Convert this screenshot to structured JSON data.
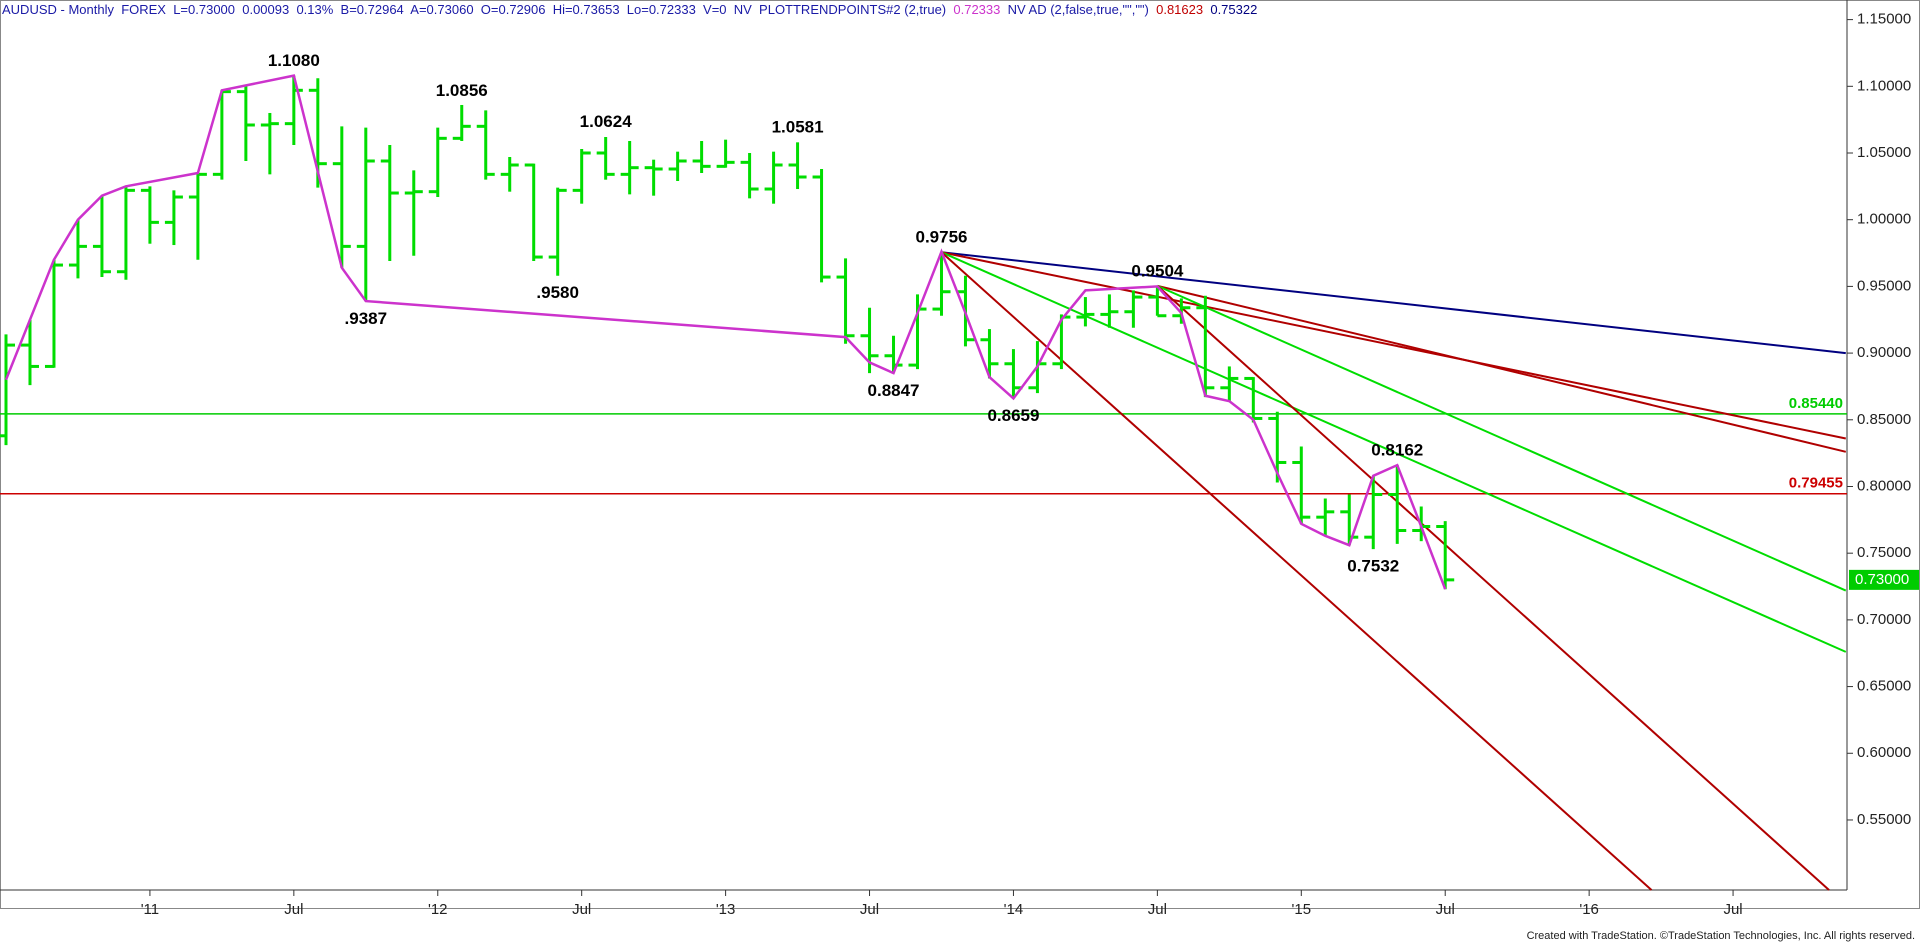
{
  "chart_data": {
    "type": "ohlc",
    "header": [
      {
        "text": "AUDUSD - Monthly  FOREX  L=0.73000  0.00093  0.13%  B=0.72964  A=0.73060  O=0.72906  Hi=0.73653  Lo=0.72333  V=0  NV  PLOTTRENDPOINTS#2 (2,true)  ",
        "color": "#1a1aa6"
      },
      {
        "text": "0.72333",
        "color": "#cc33cc"
      },
      {
        "text": "  NV AD (2,false,true,\"\",\"\")  ",
        "color": "#1a1aa6"
      },
      {
        "text": "0.81623",
        "color": "#c00000"
      },
      {
        "text": "  ",
        "color": "#1a1aa6"
      },
      {
        "text": "0.75322",
        "color": "#000080"
      }
    ],
    "footer": "Created with TradeStation. ©TradeStation Technologies, Inc. All rights reserved.",
    "categories": [
      null,
      null,
      null,
      null,
      null,
      null,
      "'11",
      null,
      null,
      null,
      null,
      null,
      "Jul",
      null,
      null,
      null,
      null,
      null,
      "'12",
      null,
      null,
      null,
      null,
      null,
      "Jul",
      null,
      null,
      null,
      null,
      null,
      "'13",
      null,
      null,
      null,
      null,
      null,
      "Jul",
      null,
      null,
      null,
      null,
      null,
      "'14",
      null,
      null,
      null,
      null,
      null,
      "Jul",
      null,
      null,
      null,
      null,
      null,
      "'15",
      null,
      null,
      null,
      null,
      null,
      "Jul",
      null,
      null,
      null,
      null,
      null,
      "'16",
      null,
      null,
      null,
      null,
      null,
      "Jul",
      null,
      null,
      null,
      null
    ],
    "color": "#00dd00",
    "open": [
      0.838,
      0.906,
      0.89,
      0.966,
      0.98,
      0.961,
      1.022,
      0.998,
      1.017,
      1.034,
      1.096,
      1.071,
      1.072,
      1.097,
      1.042,
      0.98,
      1.044,
      1.02,
      1.021,
      1.061,
      1.07,
      1.034,
      1.041,
      0.972,
      1.022,
      1.05,
      1.034,
      1.039,
      1.038,
      1.044,
      1.04,
      1.043,
      1.023,
      1.041,
      1.032,
      0.957,
      0.913,
      0.898,
      0.891,
      0.933,
      0.946,
      0.91,
      0.892,
      0.874,
      0.892,
      0.927,
      0.929,
      0.931,
      0.942,
      0.928,
      0.934,
      0.874,
      0.881,
      0.851,
      0.818,
      0.777,
      0.781,
      0.762,
      0.794,
      0.767,
      0.77,
      null,
      null,
      null,
      null,
      null,
      null,
      null,
      null,
      null,
      null,
      null,
      null,
      null,
      null,
      null,
      null
    ],
    "high": [
      0.914,
      0.925,
      0.97,
      1.0,
      1.018,
      1.025,
      1.025,
      1.022,
      1.035,
      1.097,
      1.101,
      1.08,
      1.108,
      1.106,
      1.07,
      1.069,
      1.056,
      1.037,
      1.069,
      1.086,
      1.082,
      1.047,
      1.042,
      1.024,
      1.053,
      1.062,
      1.059,
      1.045,
      1.051,
      1.059,
      1.06,
      1.05,
      1.051,
      1.058,
      1.038,
      0.971,
      0.934,
      0.913,
      0.944,
      0.976,
      0.958,
      0.918,
      0.903,
      0.909,
      0.929,
      0.942,
      0.944,
      0.947,
      0.95,
      0.941,
      0.943,
      0.89,
      0.882,
      0.856,
      0.83,
      0.791,
      0.794,
      0.808,
      0.816,
      0.785,
      0.774,
      null,
      null,
      null,
      null,
      null,
      null,
      null,
      null,
      null,
      null,
      null,
      null,
      null,
      null,
      null,
      null
    ],
    "low": [
      0.831,
      0.876,
      0.889,
      0.956,
      0.957,
      0.955,
      0.982,
      0.981,
      0.97,
      1.03,
      1.044,
      1.034,
      1.056,
      1.024,
      0.964,
      0.939,
      0.969,
      0.973,
      1.017,
      1.059,
      1.03,
      1.021,
      0.969,
      0.958,
      1.012,
      1.03,
      1.019,
      1.018,
      1.029,
      1.035,
      1.039,
      1.016,
      1.012,
      1.023,
      0.953,
      0.907,
      0.885,
      0.885,
      0.888,
      0.928,
      0.905,
      0.881,
      0.866,
      0.87,
      0.888,
      0.92,
      0.919,
      0.919,
      0.928,
      0.922,
      0.867,
      0.864,
      0.848,
      0.803,
      0.772,
      0.763,
      0.756,
      0.753,
      0.757,
      0.759,
      0.723,
      null,
      null,
      null,
      null,
      null,
      null,
      null,
      null,
      null,
      null,
      null,
      null,
      null,
      null,
      null,
      null
    ],
    "close": [
      0.906,
      0.89,
      0.966,
      0.98,
      0.961,
      1.022,
      0.998,
      1.017,
      1.034,
      1.096,
      1.071,
      1.072,
      1.097,
      1.042,
      0.98,
      1.044,
      1.02,
      1.021,
      1.061,
      1.07,
      1.034,
      1.041,
      0.972,
      1.022,
      1.05,
      1.034,
      1.039,
      1.038,
      1.044,
      1.04,
      1.043,
      1.023,
      1.041,
      1.032,
      0.957,
      0.913,
      0.898,
      0.891,
      0.933,
      0.946,
      0.91,
      0.892,
      0.874,
      0.892,
      0.927,
      0.929,
      0.931,
      0.942,
      0.928,
      0.934,
      0.874,
      0.881,
      0.851,
      0.818,
      0.777,
      0.781,
      0.762,
      0.794,
      0.767,
      0.77,
      0.73,
      null,
      null,
      null,
      null,
      null,
      null,
      null,
      null,
      null,
      null,
      null,
      null,
      null,
      null,
      null,
      null
    ],
    "ylim": [
      0.4975,
      1.1647
    ],
    "yticks": [
      {
        "value": 0.55,
        "label": "0.55000"
      },
      {
        "value": 0.6,
        "label": "0.60000"
      },
      {
        "value": 0.65,
        "label": "0.65000"
      },
      {
        "value": 0.7,
        "label": "0.70000"
      },
      {
        "value": 0.75,
        "label": "0.75000"
      },
      {
        "value": 0.8,
        "label": "0.80000"
      },
      {
        "value": 0.85,
        "label": "0.85000"
      },
      {
        "value": 0.9,
        "label": "0.90000"
      },
      {
        "value": 0.95,
        "label": "0.95000"
      },
      {
        "value": 1.0,
        "label": "1.00000"
      },
      {
        "value": 1.05,
        "label": "1.05000"
      },
      {
        "value": 1.1,
        "label": "1.10000"
      },
      {
        "value": 1.15,
        "label": "1.15000"
      }
    ],
    "trend_points": {
      "color": "#cc33cc",
      "x": [
        0,
        2,
        3,
        4,
        5,
        8,
        9,
        12,
        14,
        15,
        35,
        36,
        37,
        38,
        39,
        40,
        41,
        42,
        43,
        44,
        45,
        48,
        49,
        50,
        51,
        52,
        53,
        54,
        55,
        56,
        57,
        58,
        59,
        60
      ],
      "y": [
        0.88,
        0.97,
        1.0,
        1.018,
        1.025,
        1.035,
        1.097,
        1.108,
        0.964,
        0.939,
        0.912,
        0.893,
        0.885,
        0.93,
        0.976,
        0.93,
        0.882,
        0.866,
        0.89,
        0.925,
        0.947,
        0.95,
        0.93,
        0.868,
        0.864,
        0.85,
        0.81,
        0.772,
        0.763,
        0.756,
        0.808,
        0.816,
        0.77,
        0.723
      ]
    },
    "trend_lines": [
      {
        "color": "#000080",
        "x": [
          39,
          76.7
        ],
        "y": [
          0.9756,
          0.9
        ]
      },
      {
        "color": "#b00000",
        "x": [
          39,
          76.7
        ],
        "y": [
          0.9756,
          0.836
        ]
      },
      {
        "color": "#b00000",
        "x": [
          48,
          76.7
        ],
        "y": [
          0.9504,
          0.826
        ]
      },
      {
        "color": "#00dd00",
        "x": [
          39,
          76.7
        ],
        "y": [
          0.9756,
          0.676
        ]
      },
      {
        "color": "#00dd00",
        "x": [
          48,
          76.7
        ],
        "y": [
          0.9504,
          0.722
        ]
      },
      {
        "color": "#b00000",
        "x": [
          39,
          68.6
        ],
        "y": [
          0.9756,
          0.4975
        ]
      },
      {
        "color": "#b00000",
        "x": [
          48,
          76
        ],
        "y": [
          0.9504,
          0.4975
        ]
      }
    ],
    "levels": [
      {
        "value": 0.8544,
        "label": "0.85440",
        "color": "#00cc00"
      },
      {
        "value": 0.79455,
        "label": "0.79455",
        "color": "#cc0000"
      }
    ],
    "last_price": {
      "value": 0.73,
      "label": "0.73000",
      "color": "#00cc00"
    },
    "annotations": [
      {
        "x": 12,
        "value": 1.108,
        "label": "1.1080",
        "side": "above"
      },
      {
        "x": 15,
        "value": 0.9387,
        "label": ".9387",
        "side": "below"
      },
      {
        "x": 19,
        "value": 1.0856,
        "label": "1.0856",
        "side": "above"
      },
      {
        "x": 23,
        "value": 0.958,
        "label": ".9580",
        "side": "below"
      },
      {
        "x": 25,
        "value": 1.0624,
        "label": "1.0624",
        "side": "above"
      },
      {
        "x": 33,
        "value": 1.0581,
        "label": "1.0581",
        "side": "above"
      },
      {
        "x": 39,
        "value": 0.9756,
        "label": "0.9756",
        "side": "above"
      },
      {
        "x": 37,
        "value": 0.8847,
        "label": "0.8847",
        "side": "below"
      },
      {
        "x": 42,
        "value": 0.8659,
        "label": "0.8659",
        "side": "below"
      },
      {
        "x": 48,
        "value": 0.9504,
        "label": "0.9504",
        "side": "above"
      },
      {
        "x": 58,
        "value": 0.8162,
        "label": "0.8162",
        "side": "above"
      },
      {
        "x": 57,
        "value": 0.7532,
        "label": "0.7532",
        "side": "below"
      }
    ]
  }
}
